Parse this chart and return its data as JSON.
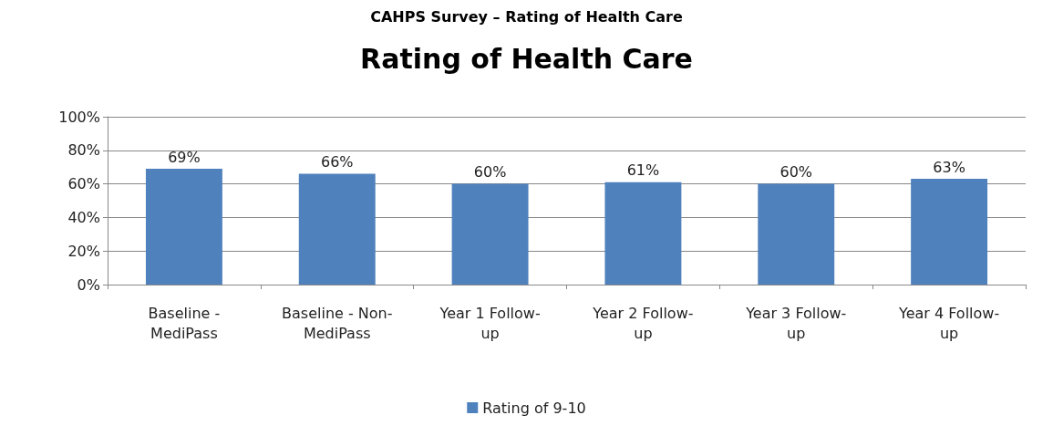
{
  "chart_data": {
    "type": "bar",
    "title": "Rating of Health Care",
    "annotations": [
      "CAHPS Survey – Rating of Health Care"
    ],
    "categories": [
      "Baseline - MediPass",
      "Baseline - Non-MediPass",
      "Year 1 Follow-up",
      "Year 2 Follow-up",
      "Year 3 Follow-up",
      "Year 4 Follow-up"
    ],
    "series": [
      {
        "name": "Rating of 9-10",
        "color": "#4f81bd",
        "values": [
          69,
          66,
          60,
          61,
          60,
          63
        ],
        "value_labels": [
          "69%",
          "66%",
          "60%",
          "61%",
          "60%",
          "63%"
        ]
      }
    ],
    "ylim": [
      0,
      100
    ],
    "yticks": [
      {
        "value": 0,
        "label": "0%"
      },
      {
        "value": 20,
        "label": "20%"
      },
      {
        "value": 40,
        "label": "40%"
      },
      {
        "value": 60,
        "label": "60%"
      },
      {
        "value": 80,
        "label": "80%"
      },
      {
        "value": 100,
        "label": "100%"
      }
    ],
    "grid": "y",
    "legend": "bottom"
  }
}
